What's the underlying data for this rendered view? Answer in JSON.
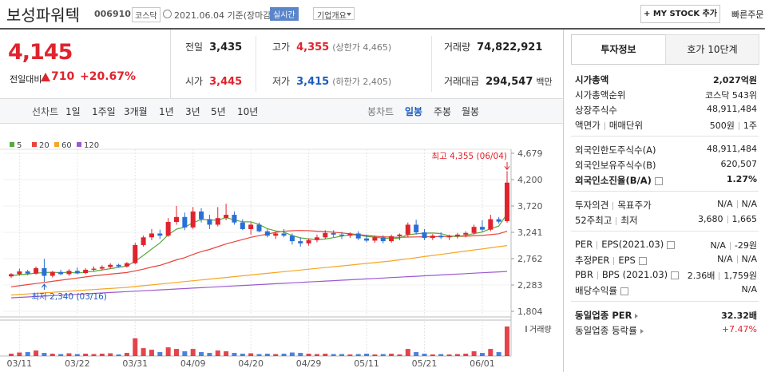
{
  "header": {
    "name": "보성파워텍",
    "code": "006910",
    "market": "코스닥",
    "date": "2021.06.04 기준(장마감)",
    "realtime": "실시간",
    "overview": "기업개요",
    "add_button": "+ MY STOCK 추가",
    "quick_order": "빠른주문"
  },
  "quote": {
    "price": "4,145",
    "change_label": "전일대비",
    "change": "710",
    "change_rate": "+20.67%",
    "color": "#e0232d",
    "cells": [
      [
        {
          "label": "전일",
          "value": "3,435"
        },
        {
          "label": "고가",
          "value": "4,355",
          "color": "#e0232d",
          "note": "(상한가 4,465)"
        },
        {
          "label": "거래량",
          "value": "74,822,921"
        }
      ],
      [
        {
          "label": "시가",
          "value": "3,445",
          "color": "#e0232d"
        },
        {
          "label": "저가",
          "value": "3,415",
          "color": "#1c5cbf",
          "note": "(하한가 2,405)"
        },
        {
          "label": "거래대금",
          "value": "294,547",
          "unit": "백만"
        }
      ]
    ]
  },
  "chart_tabs": {
    "line": [
      "선차트",
      "1일",
      "1주일",
      "3개월",
      "1년",
      "3년",
      "5년",
      "10년"
    ],
    "candle": [
      "봉차트",
      "일봉",
      "주봉",
      "월봉"
    ],
    "active_candle": 1
  },
  "chart_data": {
    "type": "candlestick",
    "up_color": "#e0232d",
    "down_color": "#2a6fd6",
    "categories": [
      null,
      "03/11",
      null,
      null,
      null,
      null,
      null,
      null,
      "03/22",
      null,
      null,
      null,
      null,
      null,
      null,
      "03/31",
      null,
      null,
      null,
      null,
      null,
      null,
      "04/09",
      null,
      null,
      null,
      null,
      null,
      null,
      "04/20",
      null,
      null,
      null,
      null,
      null,
      null,
      "04/29",
      null,
      null,
      null,
      null,
      null,
      null,
      "05/11",
      null,
      null,
      null,
      null,
      null,
      null,
      "05/21",
      null,
      null,
      null,
      null,
      null,
      null,
      "06/01",
      null,
      null,
      null
    ],
    "open": [
      2440,
      2480,
      2530,
      2490,
      2590,
      2450,
      2520,
      2480,
      2540,
      2500,
      2560,
      2580,
      2610,
      2650,
      2620,
      2680,
      3010,
      3150,
      3220,
      3180,
      3430,
      3520,
      3330,
      3620,
      3480,
      3380,
      3500,
      3560,
      3420,
      3300,
      3380,
      3260,
      3180,
      3220,
      3180,
      3080,
      3040,
      3100,
      3150,
      3230,
      3200,
      3180,
      3220,
      3130,
      3090,
      3150,
      3080,
      3170,
      3200,
      3380,
      3240,
      3140,
      3180,
      3150,
      3170,
      3200,
      3230,
      3340,
      3290,
      3480,
      3445
    ],
    "high": [
      2500,
      2580,
      2560,
      2620,
      2760,
      2540,
      2560,
      2570,
      2600,
      2590,
      2620,
      2640,
      2680,
      2670,
      2700,
      3050,
      3180,
      3300,
      3290,
      3500,
      3720,
      3600,
      3700,
      3680,
      3560,
      3700,
      3760,
      3620,
      3480,
      3420,
      3420,
      3300,
      3260,
      3300,
      3220,
      3150,
      3130,
      3200,
      3280,
      3280,
      3250,
      3240,
      3260,
      3200,
      3180,
      3190,
      3200,
      3220,
      3420,
      3470,
      3300,
      3210,
      3240,
      3200,
      3230,
      3260,
      3380,
      3460,
      3560,
      3520,
      4355
    ],
    "low": [
      2410,
      2450,
      2460,
      2470,
      2340,
      2420,
      2460,
      2450,
      2480,
      2480,
      2530,
      2550,
      2580,
      2600,
      2600,
      2660,
      2980,
      3100,
      3120,
      3160,
      3380,
      3280,
      3300,
      3420,
      3300,
      3350,
      3460,
      3380,
      3280,
      3200,
      3240,
      3150,
      3120,
      3150,
      3020,
      2980,
      3000,
      3060,
      3120,
      3150,
      3120,
      3140,
      3100,
      3060,
      3050,
      3040,
      3050,
      3100,
      3160,
      3200,
      3100,
      3100,
      3120,
      3100,
      3130,
      3150,
      3200,
      3250,
      3260,
      3400,
      3415
    ],
    "close": [
      2480,
      2530,
      2490,
      2590,
      2450,
      2520,
      2480,
      2540,
      2500,
      2560,
      2580,
      2610,
      2650,
      2620,
      2680,
      3010,
      3150,
      3220,
      3180,
      3430,
      3520,
      3330,
      3620,
      3480,
      3380,
      3500,
      3560,
      3420,
      3300,
      3380,
      3260,
      3180,
      3220,
      3180,
      3080,
      3040,
      3100,
      3150,
      3230,
      3200,
      3180,
      3220,
      3130,
      3090,
      3150,
      3080,
      3170,
      3200,
      3380,
      3240,
      3140,
      3180,
      3150,
      3170,
      3200,
      3230,
      3340,
      3290,
      3480,
      3435,
      4145
    ],
    "series": [
      {
        "name": "5",
        "color": "#5aa83c",
        "values": [
          2450,
          2470,
          2480,
          2500,
          2508,
          2516,
          2506,
          2516,
          2498,
          2520,
          2532,
          2558,
          2580,
          2604,
          2628,
          2714,
          2822,
          2936,
          3048,
          3198,
          3300,
          3336,
          3416,
          3476,
          3466,
          3462,
          3508,
          3468,
          3432,
          3432,
          3384,
          3308,
          3268,
          3244,
          3184,
          3140,
          3124,
          3110,
          3120,
          3144,
          3172,
          3196,
          3192,
          3164,
          3154,
          3134,
          3128,
          3138,
          3196,
          3214,
          3226,
          3228,
          3218,
          3176,
          3168,
          3186,
          3218,
          3246,
          3308,
          3355,
          3578
        ]
      },
      {
        "name": "20",
        "color": "#e8453c",
        "values": [
          2250,
          2270,
          2290,
          2310,
          2330,
          2350,
          2370,
          2390,
          2410,
          2430,
          2450,
          2465,
          2480,
          2495,
          2510,
          2540,
          2570,
          2610,
          2640,
          2690,
          2740,
          2780,
          2840,
          2890,
          2930,
          2980,
          3030,
          3070,
          3110,
          3150,
          3180,
          3210,
          3240,
          3260,
          3270,
          3275,
          3270,
          3262,
          3255,
          3245,
          3230,
          3215,
          3200,
          3185,
          3170,
          3160,
          3155,
          3150,
          3155,
          3158,
          3160,
          3162,
          3165,
          3166,
          3168,
          3170,
          3178,
          3185,
          3200,
          3215,
          3260
        ]
      },
      {
        "name": "60",
        "color": "#f5a623",
        "values": [
          2100,
          2110,
          2120,
          2130,
          2140,
          2150,
          2160,
          2170,
          2180,
          2190,
          2200,
          2210,
          2220,
          2230,
          2240,
          2255,
          2270,
          2285,
          2300,
          2315,
          2330,
          2345,
          2360,
          2375,
          2390,
          2405,
          2420,
          2435,
          2450,
          2465,
          2480,
          2495,
          2510,
          2525,
          2540,
          2555,
          2570,
          2585,
          2600,
          2615,
          2630,
          2645,
          2660,
          2675,
          2690,
          2705,
          2720,
          2740,
          2760,
          2780,
          2800,
          2820,
          2840,
          2860,
          2880,
          2900,
          2920,
          2940,
          2960,
          2980,
          3000
        ]
      },
      {
        "name": "120",
        "color": "#9b59d0",
        "values": [
          2050,
          2058,
          2066,
          2074,
          2082,
          2090,
          2098,
          2106,
          2114,
          2122,
          2130,
          2138,
          2146,
          2154,
          2162,
          2170,
          2178,
          2186,
          2194,
          2202,
          2210,
          2218,
          2226,
          2234,
          2242,
          2250,
          2258,
          2266,
          2274,
          2282,
          2290,
          2298,
          2306,
          2314,
          2322,
          2330,
          2338,
          2346,
          2354,
          2362,
          2370,
          2378,
          2386,
          2394,
          2402,
          2410,
          2418,
          2426,
          2434,
          2442,
          2450,
          2458,
          2466,
          2474,
          2482,
          2490,
          2498,
          2506,
          2514,
          2522,
          2530
        ]
      }
    ],
    "ylim": [
      1804,
      4679
    ],
    "yticks": [
      {
        "value": 4679,
        "label": "4,679"
      },
      {
        "value": 4200,
        "label": "4,200"
      },
      {
        "value": 3720,
        "label": "3,720"
      },
      {
        "value": 3241,
        "label": "3,241"
      },
      {
        "value": 2762,
        "label": "2,762"
      },
      {
        "value": 2283,
        "label": "2,283"
      },
      {
        "value": 1804,
        "label": "1,804"
      }
    ],
    "annotations": [
      "최고 4,355 (06/04)",
      "최저 2,340 (03/16)"
    ],
    "volume": {
      "label": "거래량",
      "values": [
        6000000,
        9000000,
        10000000,
        14000000,
        8000000,
        6000000,
        5000000,
        7000000,
        5000000,
        6000000,
        5000000,
        6000000,
        7000000,
        4000000,
        8000000,
        45000000,
        20000000,
        16000000,
        10000000,
        22000000,
        18000000,
        12000000,
        18000000,
        10000000,
        8000000,
        14000000,
        12000000,
        8000000,
        6000000,
        7000000,
        5000000,
        6000000,
        5000000,
        6000000,
        9000000,
        8000000,
        6000000,
        5000000,
        6000000,
        5000000,
        5000000,
        4000000,
        5000000,
        6000000,
        4000000,
        5000000,
        6000000,
        4000000,
        18000000,
        10000000,
        6000000,
        4000000,
        5000000,
        4000000,
        5000000,
        6000000,
        12000000,
        8000000,
        18000000,
        10000000,
        74822921
      ]
    }
  },
  "info_panel": {
    "tabs": [
      "투자정보",
      "호가 10단계"
    ],
    "groups": [
      [
        {
          "label": [
            "시가총액"
          ],
          "value": [
            "2,027억원"
          ],
          "bold": true
        },
        {
          "label": [
            "시가총액순위"
          ],
          "value": [
            "코스닥 543위"
          ]
        },
        {
          "label": [
            "상장주식수"
          ],
          "value": [
            "48,911,484"
          ]
        },
        {
          "label": [
            "액면가",
            "매매단위"
          ],
          "value": [
            "500원",
            "1주"
          ]
        }
      ],
      [
        {
          "label": [
            "외국인한도주식수(A)"
          ],
          "value": [
            "48,911,484"
          ]
        },
        {
          "label": [
            "외국인보유주식수(B)"
          ],
          "value": [
            "620,507"
          ]
        },
        {
          "label": [
            "외국인소진율(B/A)"
          ],
          "value": [
            "1.27%"
          ],
          "bold": true,
          "help": true
        }
      ],
      [
        {
          "label": [
            "투자의견",
            "목표주가"
          ],
          "value": [
            "N/A",
            "N/A"
          ]
        },
        {
          "label": [
            "52주최고",
            "최저"
          ],
          "value": [
            "3,680",
            "1,665"
          ]
        }
      ],
      [
        {
          "label": [
            "PER",
            "EPS(2021.03)"
          ],
          "value": [
            "N/A",
            "-29원"
          ],
          "help": true
        },
        {
          "label": [
            "추정PER",
            "EPS"
          ],
          "value": [
            "N/A",
            "N/A"
          ],
          "help": true
        },
        {
          "label": [
            "PBR",
            "BPS (2021.03)"
          ],
          "value": [
            "2.36배",
            "1,759원"
          ],
          "help": true
        },
        {
          "label": [
            "배당수익률"
          ],
          "value": [
            "N/A"
          ],
          "help": true
        }
      ],
      [
        {
          "label": [
            "동일업종 PER"
          ],
          "value": [
            "32.32배"
          ],
          "bold": true,
          "more": true
        },
        {
          "label": [
            "동일업종 등락률"
          ],
          "value": [
            "+7.47%"
          ],
          "more": true,
          "color": "#e0232d"
        }
      ]
    ]
  }
}
